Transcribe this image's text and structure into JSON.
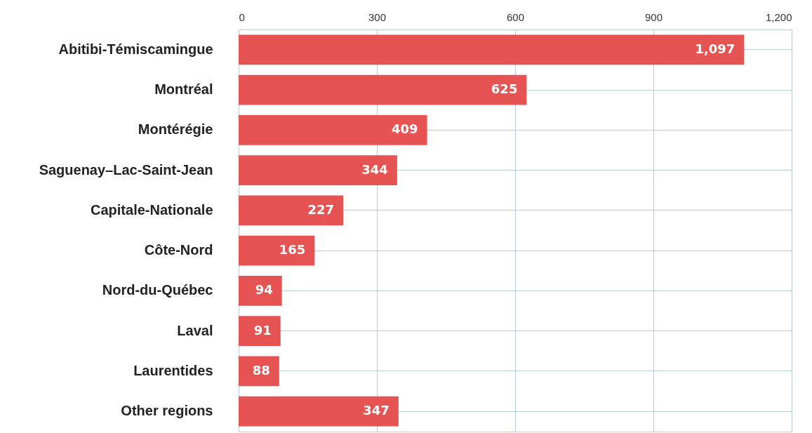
{
  "chart_data": {
    "type": "bar",
    "orientation": "horizontal",
    "categories": [
      "Abitibi-Témiscamingue",
      "Montréal",
      "Montérégie",
      "Saguenay–Lac-Saint-Jean",
      "Capitale-Nationale",
      "Côte-Nord",
      "Nord-du-Québec",
      "Laval",
      "Laurentides",
      "Other regions"
    ],
    "values": [
      1097,
      625,
      409,
      344,
      227,
      165,
      94,
      91,
      88,
      347
    ],
    "value_labels": [
      "1,097",
      "625",
      "409",
      "344",
      "227",
      "165",
      "94",
      "91",
      "88",
      "347"
    ],
    "color": "#e55353",
    "xlim": [
      0,
      1200
    ],
    "xticks": [
      0,
      300,
      600,
      900,
      {
        "value": 1200,
        "label": "1,200"
      }
    ],
    "grid": true
  }
}
